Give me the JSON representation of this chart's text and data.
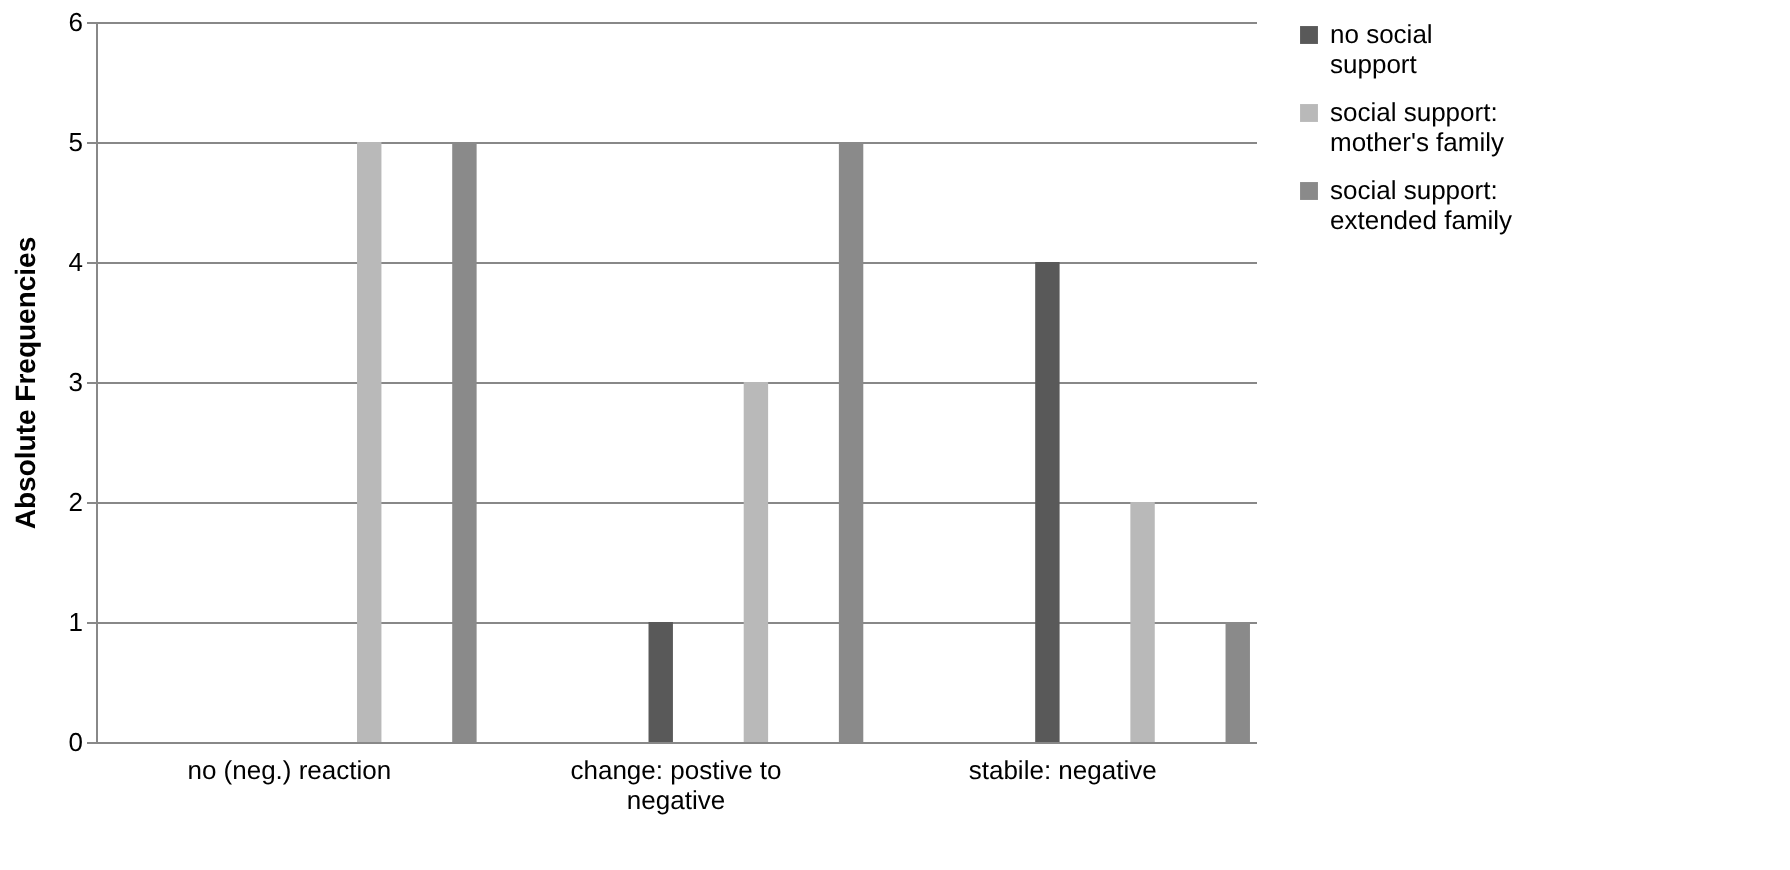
{
  "chart_data": {
    "type": "bar",
    "ylabel": "Absolute Frequencies",
    "categories": [
      "no (neg.) reaction",
      "change: postive to negative",
      "stabile: negative"
    ],
    "series": [
      {
        "name": "no social support",
        "color": "#595959",
        "values": [
          0,
          1,
          4
        ]
      },
      {
        "name": "social support: mother's family",
        "color": "#b9b9b9",
        "values": [
          5,
          3,
          2
        ]
      },
      {
        "name": "social support: extended family",
        "color": "#8a8a8a",
        "values": [
          5,
          5,
          1
        ]
      }
    ],
    "ylim": [
      0,
      6
    ],
    "yticks": [
      0,
      1,
      2,
      3,
      4,
      5,
      6
    ],
    "grid": "y",
    "legend": "right"
  }
}
